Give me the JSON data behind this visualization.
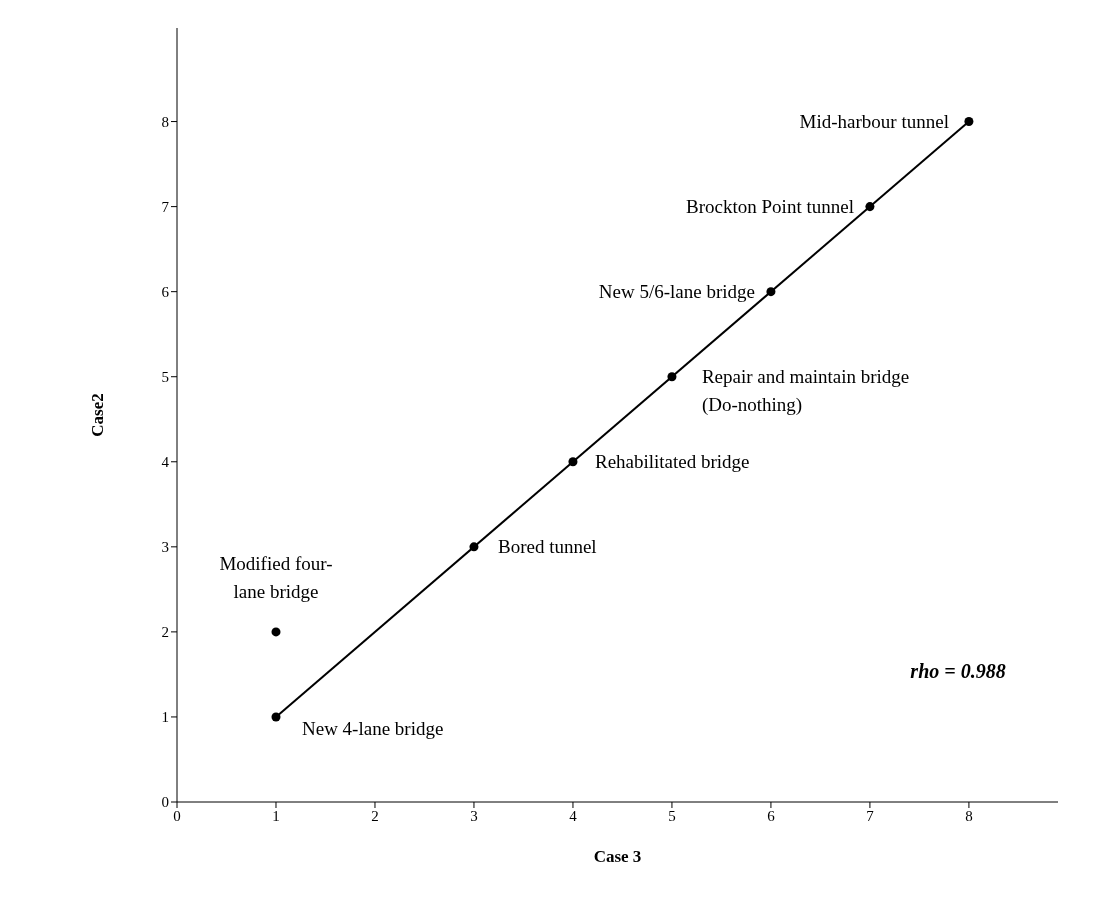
{
  "chart_data": {
    "type": "scatter",
    "xlabel": "Case 3",
    "ylabel": "Case2",
    "xlim": [
      0,
      8.9
    ],
    "xticks": [
      0,
      1,
      2,
      3,
      4,
      5,
      6,
      7,
      8
    ],
    "ylim": [
      0,
      9.1
    ],
    "yticks": [
      0,
      1,
      2,
      3,
      4,
      5,
      6,
      7,
      8
    ],
    "grid": false,
    "marker": "circle",
    "series": [
      {
        "type": "line",
        "marker": "none",
        "color": "#000000",
        "x": [
          1,
          8
        ],
        "values": [
          1,
          8
        ]
      },
      {
        "color": "#000000",
        "x": [
          1,
          1,
          3,
          4,
          5,
          6,
          7,
          8
        ],
        "values": [
          2,
          1,
          3,
          4,
          5,
          6,
          7,
          8
        ]
      }
    ],
    "annotations": [
      {
        "text": "Modified four-\nlane bridge",
        "x": 1,
        "y": 2
      },
      {
        "text": "New 4-lane bridge",
        "x": 1,
        "y": 1
      },
      {
        "text": "Bored tunnel",
        "x": 3,
        "y": 3
      },
      {
        "text": "Rehabilitated bridge",
        "x": 4,
        "y": 4
      },
      {
        "text": "Repair and maintain bridge\n(Do-nothing)",
        "x": 5,
        "y": 5
      },
      {
        "text": "New 5/6-lane bridge",
        "x": 6,
        "y": 6
      },
      {
        "text": "Brockton Point tunnel",
        "x": 7,
        "y": 7
      },
      {
        "text": "Mid-harbour tunnel",
        "x": 8,
        "y": 8
      },
      "rho = 0.988"
    ]
  }
}
